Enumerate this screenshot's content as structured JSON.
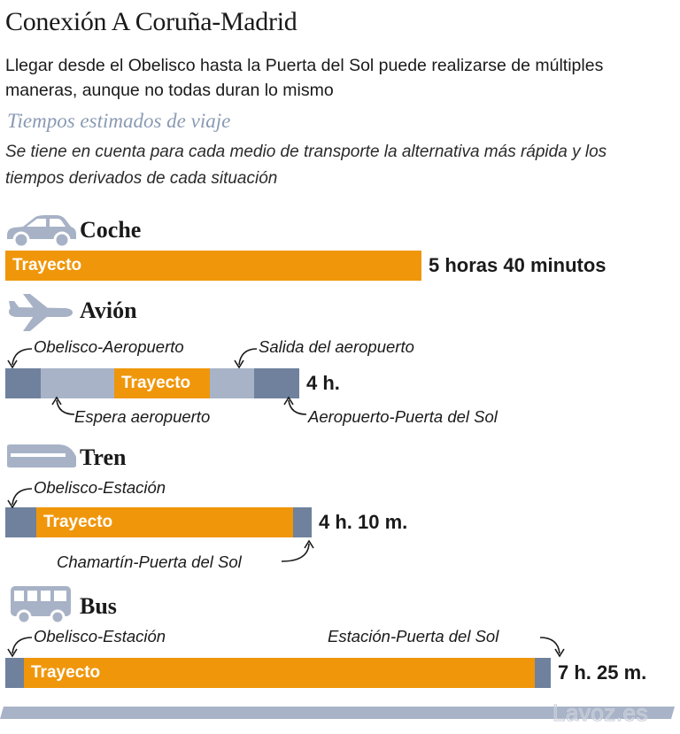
{
  "header": {
    "title": "Conexión A Coruña-Madrid",
    "description": "Llegar desde el Obelisco hasta la Puerta del Sol puede realizarse de múltiples maneras, aunque no todas duran lo mismo",
    "subtitle": "Tiempos estimados de viaje",
    "note": "Se tiene en cuenta para cada medio de transporte la alternativa más rápida y los tiempos derivados de cada situación"
  },
  "colors": {
    "orange": "#f0960a",
    "dark_blue": "#6f819c",
    "light_blue": "#a8b3c8",
    "icon": "#a7b2c6"
  },
  "chart_data": {
    "type": "bar",
    "orientation": "horizontal-stacked",
    "unit": "minutes",
    "categories": [
      "Coche",
      "Avión",
      "Tren",
      "Bus"
    ],
    "modes": [
      {
        "name": "Coche",
        "icon": "car-icon",
        "total_label": "5 horas 40 minutos",
        "total_minutes": 340,
        "segments": [
          {
            "label": "Trayecto",
            "color": "orange",
            "minutes": 340
          }
        ]
      },
      {
        "name": "Avión",
        "icon": "plane-icon",
        "total_label": "4 h.",
        "total_minutes": 240,
        "segments": [
          {
            "label": "Obelisco-Aeropuerto",
            "color": "dark_blue",
            "minutes": 29
          },
          {
            "label": "Espera aeropuerto",
            "color": "light_blue",
            "minutes": 60
          },
          {
            "label": "Trayecto",
            "color": "orange",
            "minutes": 78
          },
          {
            "label": "Salida del aeropuerto",
            "color": "light_blue",
            "minutes": 36
          },
          {
            "label": "Aeropuerto-Puerta del Sol",
            "color": "dark_blue",
            "minutes": 37
          }
        ]
      },
      {
        "name": "Tren",
        "icon": "train-icon",
        "total_label": "4 h. 10 m.",
        "total_minutes": 250,
        "segments": [
          {
            "label": "Obelisco-Estación",
            "color": "dark_blue",
            "minutes": 25
          },
          {
            "label": "Trayecto",
            "color": "orange",
            "minutes": 210
          },
          {
            "label": "Chamartín-Puerta del Sol",
            "color": "dark_blue",
            "minutes": 15
          }
        ]
      },
      {
        "name": "Bus",
        "icon": "bus-icon",
        "total_label": "7 h. 25 m.",
        "total_minutes": 445,
        "segments": [
          {
            "label": "Obelisco-Estación",
            "color": "dark_blue",
            "minutes": 15
          },
          {
            "label": "Trayecto",
            "color": "orange",
            "minutes": 417
          },
          {
            "label": "Estación-Puerta del Sol",
            "color": "dark_blue",
            "minutes": 13
          }
        ]
      }
    ]
  },
  "footer": {
    "source": "Lavoz.es"
  }
}
